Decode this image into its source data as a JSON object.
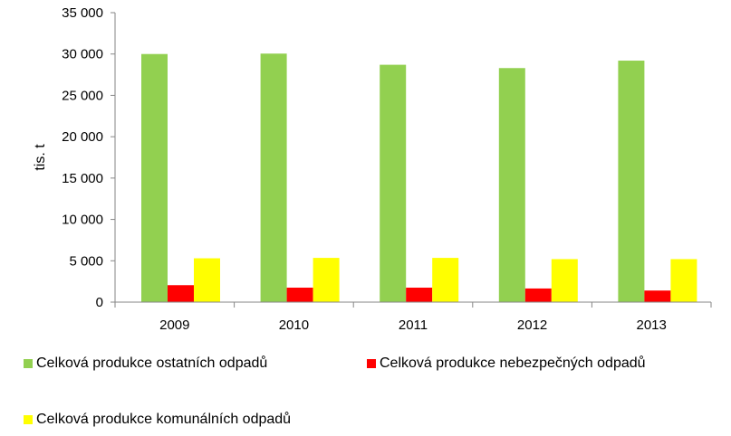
{
  "chart_data": {
    "type": "bar",
    "categories": [
      "2009",
      "2010",
      "2011",
      "2012",
      "2013"
    ],
    "series": [
      {
        "name": "Celková produkce ostatních odpadů",
        "color": "#92d050",
        "values": [
          30000,
          30050,
          28700,
          28300,
          29200
        ]
      },
      {
        "name": "Celková produkce nebezpečných odpadů",
        "color": "#ff0000",
        "values": [
          2050,
          1750,
          1750,
          1650,
          1400
        ]
      },
      {
        "name": "Celková produkce komunálních odpadů",
        "color": "#ffff00",
        "values": [
          5300,
          5350,
          5350,
          5200,
          5200
        ]
      }
    ],
    "yticks": [
      "0",
      "5 000",
      "10 000",
      "15 000",
      "20 000",
      "25 000",
      "30 000",
      "35 000"
    ],
    "ylabel": "tis. t",
    "xlabel": "",
    "ylim": [
      0,
      35000
    ],
    "grid": false,
    "legend_position": "bottom"
  }
}
